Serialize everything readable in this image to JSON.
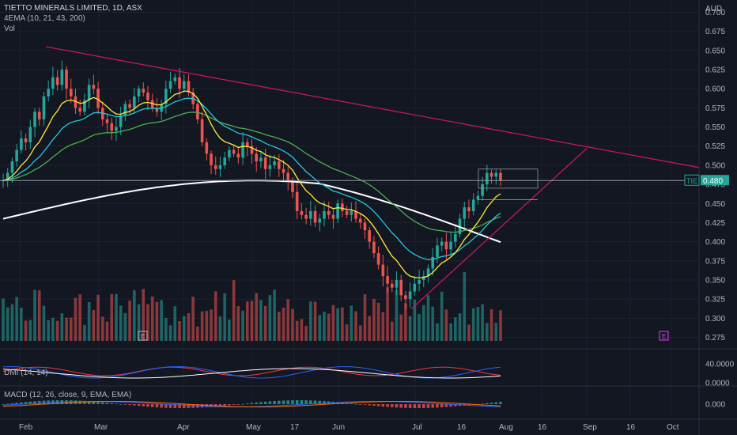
{
  "header": {
    "title": "TIETTO MINERALS LIMITED, 1D, ASX",
    "indicator": "4EMA (10, 21, 43, 200)",
    "volume": "Vol"
  },
  "price_axis": {
    "currency": "AUD",
    "ticks": [
      "0.700",
      "0.675",
      "0.650",
      "0.625",
      "0.600",
      "0.575",
      "0.550",
      "0.525",
      "0.500",
      "0.475",
      "0.450",
      "0.425",
      "0.400",
      "0.375",
      "0.350",
      "0.325",
      "0.300",
      "0.275"
    ],
    "last_price_label": "0.480",
    "symbol_tag": "TIE"
  },
  "dmi": {
    "label": "DMI (14, 14)",
    "ticks": [
      "40.0000",
      "0.0000"
    ]
  },
  "macd": {
    "label": "MACD (12, 26, close, 9, EMA, EMA)",
    "ticks": [
      "0.000"
    ]
  },
  "time_axis": {
    "labels": [
      "Feb",
      "Mar",
      "Apr",
      "May",
      "17",
      "Jun",
      "Jul",
      "16",
      "Aug",
      "16",
      "Sep",
      "16",
      "Oct"
    ]
  },
  "markers": {
    "earnings": "E"
  },
  "colors": {
    "background": "#131722",
    "up": "#26a69a",
    "down": "#ef5350",
    "ema10": "#ffeb3b",
    "ema21": "#26c6da",
    "ema43": "#4caf50",
    "ema200": "#ffffff",
    "trendline": "#c2185b",
    "di_plus": "#2962ff",
    "di_minus": "#f23645",
    "adx": "#ffffff"
  },
  "chart_data": {
    "type": "candlestick",
    "symbol": "TIE",
    "exchange": "ASX",
    "interval": "1D",
    "ylim": [
      0.26,
      0.715
    ],
    "last_price": 0.48,
    "start_close": 0.48,
    "closes": [
      0.48,
      0.49,
      0.505,
      0.52,
      0.535,
      0.53,
      0.55,
      0.57,
      0.56,
      0.59,
      0.6,
      0.615,
      0.605,
      0.625,
      0.6,
      0.59,
      0.575,
      0.57,
      0.585,
      0.605,
      0.6,
      0.575,
      0.56,
      0.555,
      0.545,
      0.55,
      0.565,
      0.58,
      0.575,
      0.59,
      0.6,
      0.595,
      0.585,
      0.575,
      0.57,
      0.58,
      0.6,
      0.61,
      0.615,
      0.6,
      0.61,
      0.595,
      0.58,
      0.56,
      0.53,
      0.515,
      0.5,
      0.495,
      0.5,
      0.51,
      0.52,
      0.515,
      0.51,
      0.53,
      0.525,
      0.515,
      0.505,
      0.51,
      0.495,
      0.5,
      0.505,
      0.495,
      0.49,
      0.48,
      0.465,
      0.44,
      0.435,
      0.43,
      0.44,
      0.425,
      0.43,
      0.44,
      0.435,
      0.43,
      0.45,
      0.44,
      0.435,
      0.44,
      0.43,
      0.425,
      0.415,
      0.4,
      0.385,
      0.37,
      0.355,
      0.345,
      0.34,
      0.35,
      0.33,
      0.325,
      0.335,
      0.345,
      0.35,
      0.355,
      0.365,
      0.38,
      0.395,
      0.4,
      0.39,
      0.4,
      0.41,
      0.43,
      0.445,
      0.44,
      0.455,
      0.46,
      0.475,
      0.49,
      0.485,
      0.49,
      0.48
    ]
  }
}
